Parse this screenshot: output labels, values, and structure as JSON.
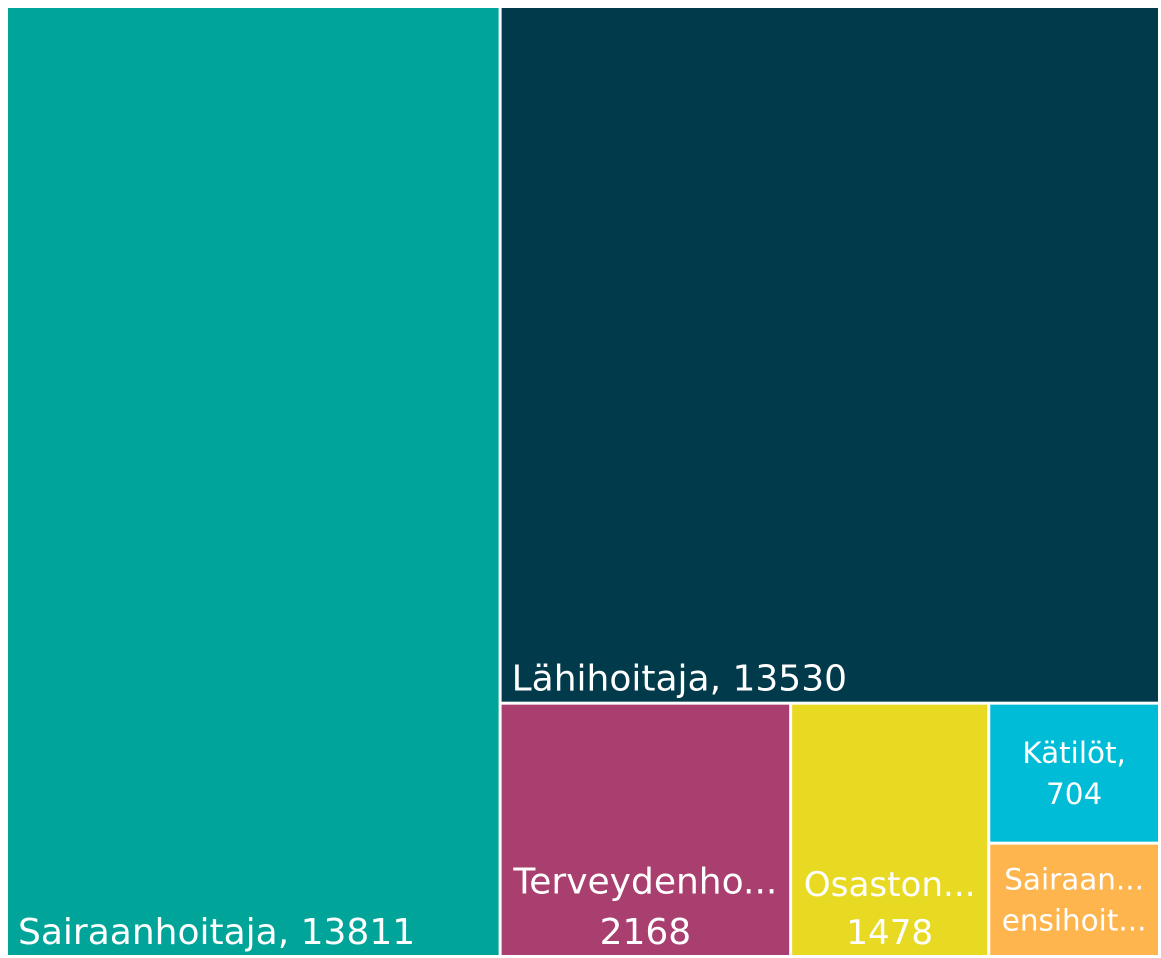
{
  "chart_data": {
    "type": "treemap",
    "labels": [
      [
        "Sairaanhoitaja, 13811"
      ],
      [
        "Lähihoitaja, 13530"
      ],
      [
        "Terveydenho...",
        "2168"
      ],
      [
        "Osaston...",
        "1478"
      ],
      [
        "Kätilöt,",
        "704"
      ],
      [
        "Sairaan...",
        "ensihoit..."
      ]
    ],
    "values": [
      13811,
      13530,
      2168,
      1478,
      704,
      570
    ],
    "colors": [
      "#01a499",
      "#013b4b",
      "#a93f6e",
      "#e8d923",
      "#01bcd6",
      "#feb54e"
    ]
  }
}
